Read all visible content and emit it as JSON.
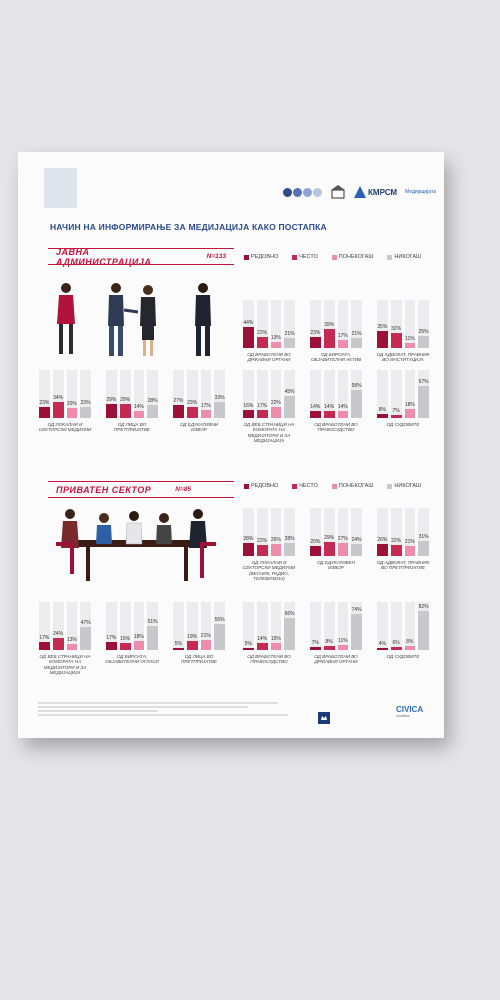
{
  "title": "НАЧИН НА ИНФОРМИРАЊЕ ЗА МЕДИЈАЦИЈА КАКО ПОСТАПКА",
  "logos": {
    "kmrsm": "КМРСМ",
    "med": "Медијацијата"
  },
  "colors": {
    "regularno": "#9b1138",
    "cesto": "#c52a53",
    "ponekogas": "#ee8cab",
    "nikogas": "#c8c8cc",
    "accent": "#c4163c"
  },
  "legend": [
    {
      "key": "regularno",
      "label": "РЕДОВНО"
    },
    {
      "key": "cesto",
      "label": "ЧЕСТО"
    },
    {
      "key": "ponekogas",
      "label": "ПОНЕКОГАШ"
    },
    {
      "key": "nikogas",
      "label": "НИКОГАШ"
    }
  ],
  "sections": [
    {
      "name": "ЈАВНА АДМИНИСТРАЦИЈА",
      "n": "N=133"
    },
    {
      "name": "ПРИВАТЕН СЕКТОР",
      "n": "N=85"
    }
  ],
  "chart_data": [
    {
      "type": "bar",
      "section": "ЈАВНА АДМИНИСТРАЦИЈА",
      "title": "ОД ВРАБОТЕНИ ВО ДРЖАВНИ ОРГАНИ",
      "categories": [
        "РЕДОВНО",
        "ЧЕСТО",
        "ПОНЕКОГАШ",
        "НИКОГАШ"
      ],
      "values": [
        44,
        22,
        13,
        21
      ],
      "ylim": [
        0,
        100
      ]
    },
    {
      "type": "bar",
      "section": "ЈАВНА АДМИНИСТРАЦИЈА",
      "title": "ОД БИРОАТА, ОБЈАВИТЕЛНИ АКТИВ",
      "categories": [
        "РЕДОВНО",
        "ЧЕСТО",
        "ПОНЕКОГАШ",
        "НИКОГАШ"
      ],
      "values": [
        23,
        39,
        17,
        21
      ],
      "ylim": [
        0,
        100
      ]
    },
    {
      "type": "bar",
      "section": "ЈАВНА АДМИНИСТРАЦИЈА",
      "title": "ОД АДВОКАТ, ПРАВНИК ВО ИНСТИТУЦИЈА",
      "categories": [
        "РЕДОВНО",
        "ЧЕСТО",
        "ПОНЕКОГАШ",
        "НИКОГАШ"
      ],
      "values": [
        35,
        32,
        11,
        25
      ],
      "ylim": [
        0,
        100
      ]
    },
    {
      "type": "bar",
      "section": "ЈАВНА АДМИНИСТРАЦИЈА",
      "title": "ОД ЛОКАЛНИ И СЕКТОРСКИ МЕДИУМИ",
      "categories": [
        "РЕДОВНО",
        "ЧЕСТО",
        "ПОНЕКОГАШ",
        "НИКОГАШ"
      ],
      "values": [
        23,
        34,
        20,
        23
      ],
      "ylim": [
        0,
        100
      ]
    },
    {
      "type": "bar",
      "section": "ЈАВНА АДМИНИСТРАЦИЈА",
      "title": "ОД ЛИЦА ВО ПРЕТПРИЈАТИЕ",
      "categories": [
        "РЕДОВНО",
        "ЧЕСТО",
        "ПОНЕКОГАШ",
        "НИКОГАШ"
      ],
      "values": [
        29,
        29,
        14,
        28
      ],
      "ylim": [
        0,
        100
      ]
    },
    {
      "type": "bar",
      "section": "ЈАВНА АДМИНИСТРАЦИЈА",
      "title": "ОД ЕДУКАТИВНИ ИЗВОР",
      "categories": [
        "РЕДОВНО",
        "ЧЕСТО",
        "ПОНЕКОГАШ",
        "НИКОГАШ"
      ],
      "values": [
        27,
        23,
        17,
        33
      ],
      "ylim": [
        0,
        100
      ]
    },
    {
      "type": "bar",
      "section": "ЈАВНА АДМИНИСТРАЦИЈА",
      "title": "ОД ВЕБ СТРАНИЦИ НА КОМОРАТА НА МЕДИЈАТОРИ И ЗА МЕДИЈАЦИЈА",
      "categories": [
        "РЕДОВНО",
        "ЧЕСТО",
        "ПОНЕКОГАШ",
        "НИКОГАШ"
      ],
      "values": [
        16,
        17,
        22,
        45
      ],
      "ylim": [
        0,
        100
      ]
    },
    {
      "type": "bar",
      "section": "ЈАВНА АДМИНИСТРАЦИЈА",
      "title": "ОД ВРАБОТЕНИ ВО ПРАВОСУДСТВО",
      "categories": [
        "РЕДОВНО",
        "ЧЕСТО",
        "ПОНЕКОГАШ",
        "НИКОГАШ"
      ],
      "values": [
        14,
        14,
        14,
        58
      ],
      "ylim": [
        0,
        100
      ]
    },
    {
      "type": "bar",
      "section": "ЈАВНА АДМИНИСТРАЦИЈА",
      "title": "ОД СУДОВИТЕ",
      "categories": [
        "РЕДОВНО",
        "ЧЕСТО",
        "ПОНЕКОГАШ",
        "НИКОГАШ"
      ],
      "values": [
        8,
        7,
        18,
        67
      ],
      "ylim": [
        0,
        100
      ]
    },
    {
      "type": "bar",
      "section": "ПРИВАТЕН СЕКТОР",
      "title": "ОД ЛОКАЛНИ И СЕКТОРСКИ МЕДИУМИ (ВЕСНИК, РАДИО, ТЕЛЕВИЗИЈА)",
      "categories": [
        "РЕДОВНО",
        "ЧЕСТО",
        "ПОНЕКОГАШ",
        "НИКОГАШ"
      ],
      "values": [
        28,
        22,
        26,
        28
      ],
      "ylim": [
        0,
        100
      ]
    },
    {
      "type": "bar",
      "section": "ПРИВАТЕН СЕКТОР",
      "title": "ОД ЕДУКАТИВЕН ИЗВОР",
      "categories": [
        "РЕДОВНО",
        "ЧЕСТО",
        "ПОНЕКОГАШ",
        "НИКОГАШ"
      ],
      "values": [
        20,
        29,
        27,
        24
      ],
      "ylim": [
        0,
        100
      ]
    },
    {
      "type": "bar",
      "section": "ПРИВАТЕН СЕКТОР",
      "title": "ОД АДВОКАТ, ПРАВНИК ВО ПРЕТПРИЈАТИЕ",
      "categories": [
        "РЕДОВНО",
        "ЧЕСТО",
        "ПОНЕКОГАШ",
        "НИКОГАШ"
      ],
      "values": [
        26,
        22,
        21,
        31
      ],
      "ylim": [
        0,
        100
      ]
    },
    {
      "type": "bar",
      "section": "ПРИВАТЕН СЕКТОР",
      "title": "ОД ВЕБ СТРАНИЦИ НА КОМОРАТА НА МЕДИЈАТОРИ И ЗА МЕДИЈАЦИЈА",
      "categories": [
        "РЕДОВНО",
        "ЧЕСТО",
        "ПОНЕКОГАШ",
        "НИКОГАШ"
      ],
      "values": [
        17,
        24,
        13,
        47
      ],
      "ylim": [
        0,
        100
      ]
    },
    {
      "type": "bar",
      "section": "ПРИВАТЕН СЕКТОР",
      "title": "ОД БИРОАТА, ОБЈАВИТЕЛНИ ОГЛАСИ",
      "categories": [
        "РЕДОВНО",
        "ЧЕСТО",
        "ПОНЕКОГАШ",
        "НИКОГАШ"
      ],
      "values": [
        17,
        15,
        18,
        51
      ],
      "ylim": [
        0,
        100
      ]
    },
    {
      "type": "bar",
      "section": "ПРИВАТЕН СЕКТОР",
      "title": "ОД ЛИЦА ВО ПРЕТПРИЈАТИЕ",
      "categories": [
        "РЕДОВНО",
        "ЧЕСТО",
        "ПОНЕКОГАШ",
        "НИКОГАШ"
      ],
      "values": [
        5,
        19,
        21,
        55
      ],
      "ylim": [
        0,
        100
      ]
    },
    {
      "type": "bar",
      "section": "ПРИВАТЕН СЕКТОР",
      "title": "ОД ВРАБОТЕНИ ВО ПРАВОСУДСТВО",
      "categories": [
        "РЕДОВНО",
        "ЧЕСТО",
        "ПОНЕКОГАШ",
        "НИКОГАШ"
      ],
      "values": [
        5,
        14,
        15,
        66
      ],
      "ylim": [
        0,
        100
      ]
    },
    {
      "type": "bar",
      "section": "ПРИВАТЕН СЕКТОР",
      "title": "ОД ВРАБОТЕНИ ВО ДРЖАВНИ ОРГАНИ",
      "categories": [
        "РЕДОВНО",
        "ЧЕСТО",
        "ПОНЕКОГАШ",
        "НИКОГАШ"
      ],
      "values": [
        7,
        8,
        11,
        74
      ],
      "ylim": [
        0,
        100
      ]
    },
    {
      "type": "bar",
      "section": "ПРИВАТЕН СЕКТОР",
      "title": "ОД СУДОВИТЕ",
      "categories": [
        "РЕДОВНО",
        "ЧЕСТО",
        "ПОНЕКОГАШ",
        "НИКОГАШ"
      ],
      "values": [
        4,
        6,
        8,
        82
      ],
      "ylim": [
        0,
        100
      ]
    }
  ]
}
